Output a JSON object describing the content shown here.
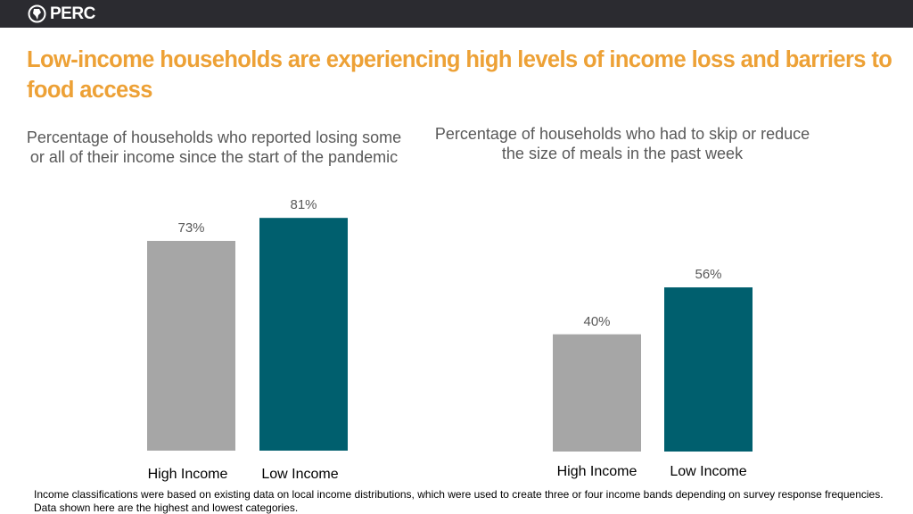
{
  "header": {
    "logo": "PERC"
  },
  "title": "Low-income households are experiencing high levels of income loss and barriers to food access",
  "chart_data": [
    {
      "type": "bar",
      "title": "Percentage of households who reported losing some or all of their income since the start of the pandemic",
      "categories": [
        "High Income",
        "Low Income"
      ],
      "values": [
        73,
        81
      ],
      "value_labels": [
        "73%",
        "81%"
      ],
      "colors": [
        "#a6a6a6",
        "#005f6e"
      ]
    },
    {
      "type": "bar",
      "title": "Percentage of households who had to skip or reduce the size of meals in the past week",
      "categories": [
        "High Income",
        "Low Income"
      ],
      "values": [
        40,
        56
      ],
      "value_labels": [
        "40%",
        "56%"
      ],
      "colors": [
        "#a6a6a6",
        "#005f6e"
      ]
    }
  ],
  "footnote": "Income classifications were based on existing data on local income distributions, which were used to create three or four income bands depending on survey response frequencies. Data shown here are the highest and lowest categories."
}
